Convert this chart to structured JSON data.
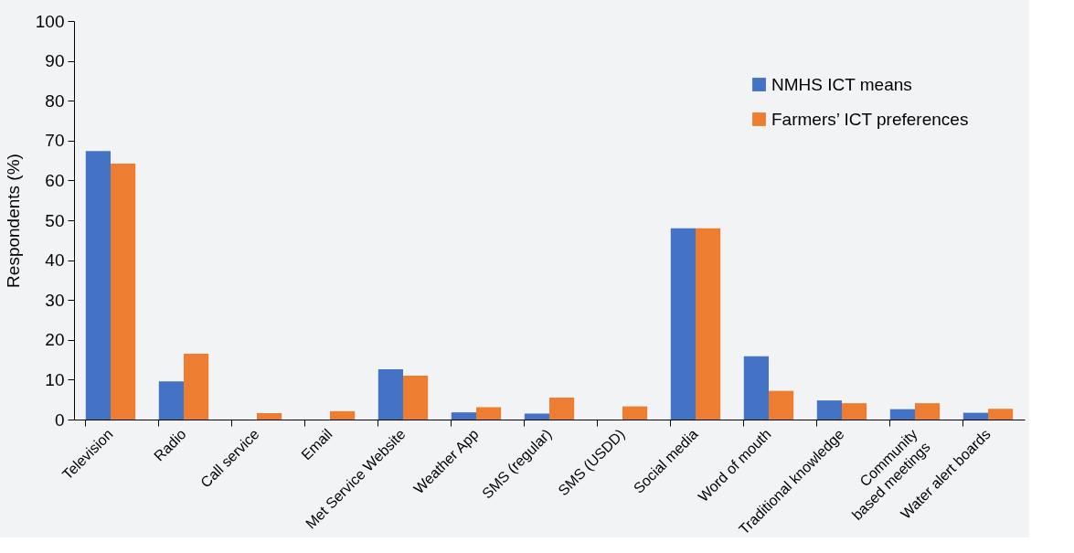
{
  "chart_data": {
    "type": "bar",
    "ylabel": "Respondents (%)",
    "categories": [
      "Television",
      "Radio",
      "Call service",
      "Email",
      "Met Service Website",
      "Weather App",
      "SMS (regular)",
      "SMS (USDD)",
      "Social media",
      "Word of mouth",
      "Traditional knowledge",
      "Community\nbased meetings",
      "Water alert boards"
    ],
    "series": [
      {
        "name": "NMHS ICT means",
        "color": "#4472c4",
        "values": [
          67.4,
          9.6,
          0,
          0,
          12.6,
          1.8,
          1.5,
          0,
          48.0,
          15.9,
          4.8,
          2.6,
          1.7
        ]
      },
      {
        "name": "Farmers’ ICT preferences",
        "color": "#ed7d31",
        "values": [
          64.2,
          16.5,
          1.6,
          2.1,
          11.0,
          3.1,
          5.5,
          3.3,
          48.0,
          7.2,
          4.1,
          4.1,
          2.7
        ]
      }
    ],
    "ylim": [
      0,
      100
    ],
    "yticks": [
      0,
      10,
      20,
      30,
      40,
      50,
      60,
      70,
      80,
      90,
      100
    ],
    "grid": false,
    "legend": "top right"
  }
}
